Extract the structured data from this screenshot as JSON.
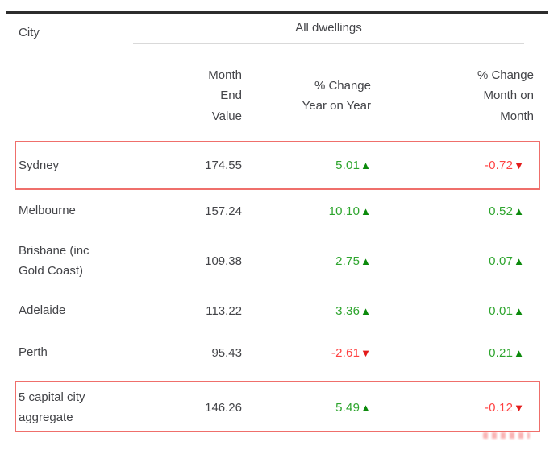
{
  "table": {
    "city_header": "City",
    "group_header": "All dwellings",
    "columns": [
      "Month\nEnd\nValue",
      "% Change\nYear on Year",
      "% Change\nMonth on\nMonth"
    ],
    "rows": [
      {
        "city": "Sydney",
        "value": "174.55",
        "yoy": {
          "value": "5.01",
          "direction": "up"
        },
        "mom": {
          "value": "-0.72",
          "direction": "down"
        },
        "highlighted": true
      },
      {
        "city": "Melbourne",
        "value": "157.24",
        "yoy": {
          "value": "10.10",
          "direction": "up"
        },
        "mom": {
          "value": "0.52",
          "direction": "up"
        },
        "highlighted": false
      },
      {
        "city": "Brisbane (inc\nGold Coast)",
        "value": "109.38",
        "yoy": {
          "value": "2.75",
          "direction": "up"
        },
        "mom": {
          "value": "0.07",
          "direction": "up"
        },
        "highlighted": false
      },
      {
        "city": "Adelaide",
        "value": "113.22",
        "yoy": {
          "value": "3.36",
          "direction": "up"
        },
        "mom": {
          "value": "0.01",
          "direction": "up"
        },
        "highlighted": false
      },
      {
        "city": "Perth",
        "value": "95.43",
        "yoy": {
          "value": "-2.61",
          "direction": "down"
        },
        "mom": {
          "value": "0.21",
          "direction": "up"
        },
        "highlighted": false
      },
      {
        "city": "5 capital city\naggregate",
        "value": "146.26",
        "yoy": {
          "value": "5.49",
          "direction": "up"
        },
        "mom": {
          "value": "-0.12",
          "direction": "down"
        },
        "highlighted": true
      }
    ],
    "colors": {
      "text": "#434448",
      "rule_dark": "#2d2d2d",
      "rule_light": "#d9d9d9",
      "up_text": "#2ea52e",
      "up_arrow": "#0c8a0c",
      "down_text": "#ff4242",
      "down_arrow": "#e31b1b",
      "highlight_border": "#ef6f6b"
    }
  },
  "chart_data": {
    "type": "table",
    "title": "",
    "group_header": "All dwellings",
    "columns": [
      "City",
      "Month End Value",
      "% Change Year on Year",
      "% Change Month on Month"
    ],
    "rows": [
      [
        "Sydney",
        174.55,
        5.01,
        -0.72
      ],
      [
        "Melbourne",
        157.24,
        10.1,
        0.52
      ],
      [
        "Brisbane (inc Gold Coast)",
        109.38,
        2.75,
        0.07
      ],
      [
        "Adelaide",
        113.22,
        3.36,
        0.01
      ],
      [
        "Perth",
        95.43,
        -2.61,
        0.21
      ],
      [
        "5 capital city aggregate",
        146.26,
        5.49,
        -0.12
      ]
    ],
    "annotations": [
      "Sydney row outlined with red box",
      "5 capital city aggregate row outlined with red box",
      "Positive changes shown in green with up triangle, negative in red with down triangle"
    ]
  }
}
